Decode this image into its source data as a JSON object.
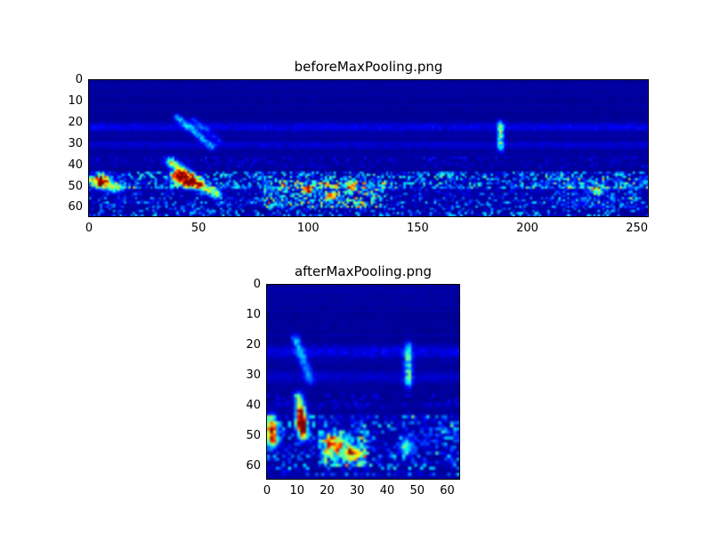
{
  "figure": {
    "background": "#ffffff",
    "colormap": "jet",
    "colormap_low_color": "#000080",
    "colormap_high_color": "#800000"
  },
  "chart_data": [
    {
      "type": "heatmap",
      "title": "beforeMaxPooling.png",
      "xlabel": "",
      "ylabel": "",
      "x_range": [
        0,
        255
      ],
      "y_range": [
        0,
        64
      ],
      "x_ticks": [
        0,
        50,
        100,
        150,
        200,
        250
      ],
      "y_ticks": [
        0,
        10,
        20,
        30,
        40,
        50,
        60
      ],
      "grid": [
        256,
        64
      ],
      "seed": 7,
      "base_value": 0.02,
      "features": [
        {
          "kind": "hline",
          "y": 21.5,
          "amp": 0.09,
          "spread": 1.3
        },
        {
          "kind": "hline",
          "y": 30,
          "amp": 0.06,
          "spread": 1.2
        },
        {
          "kind": "band",
          "y1": 36,
          "y2": 43,
          "amp": 0.1,
          "density": 0.3
        },
        {
          "kind": "line",
          "x1": 40,
          "y1": 17,
          "x2": 56,
          "y2": 31,
          "amp": 0.26,
          "w": 1.1
        },
        {
          "kind": "line",
          "x1": 47,
          "y1": 18,
          "x2": 59,
          "y2": 28,
          "amp": 0.12,
          "w": 1.0
        },
        {
          "kind": "line",
          "x1": 37,
          "y1": 38,
          "x2": 50,
          "y2": 48,
          "amp": 0.5,
          "w": 1.5
        },
        {
          "kind": "line",
          "x1": 48,
          "y1": 48,
          "x2": 58,
          "y2": 53,
          "amp": 0.45,
          "w": 1.5
        },
        {
          "kind": "blob",
          "x": 41,
          "y": 45,
          "rx": 2.5,
          "ry": 2.0,
          "amp": 0.95
        },
        {
          "kind": "blob",
          "x": 45,
          "y": 48,
          "rx": 2.0,
          "ry": 1.5,
          "amp": 0.8
        },
        {
          "kind": "blob",
          "x": 5,
          "y": 47,
          "rx": 3.0,
          "ry": 1.8,
          "amp": 0.95
        },
        {
          "kind": "blob",
          "x": 11,
          "y": 50,
          "rx": 3.0,
          "ry": 1.5,
          "amp": 0.45
        },
        {
          "kind": "band",
          "y1": 43,
          "y2": 50,
          "amp": 0.33,
          "density": 0.65
        },
        {
          "kind": "band",
          "y1": 50,
          "y2": 63,
          "amp": 0.25,
          "density": 0.45
        },
        {
          "kind": "cluster",
          "x1": 80,
          "x2": 135,
          "y1": 47,
          "y2": 59,
          "amp": 0.7,
          "density": 0.5
        },
        {
          "kind": "blob",
          "x": 100,
          "y": 51,
          "rx": 1.6,
          "ry": 1.3,
          "amp": 0.75
        },
        {
          "kind": "blob",
          "x": 110,
          "y": 54,
          "rx": 1.6,
          "ry": 1.3,
          "amp": 0.7
        },
        {
          "kind": "blob",
          "x": 120,
          "y": 50,
          "rx": 1.4,
          "ry": 1.2,
          "amp": 0.65
        },
        {
          "kind": "vline",
          "x": 188,
          "y1": 18,
          "y2": 34,
          "amp": 0.45,
          "w": 1.0
        },
        {
          "kind": "cluster",
          "x1": 212,
          "x2": 252,
          "y1": 46,
          "y2": 59,
          "amp": 0.35,
          "density": 0.4
        },
        {
          "kind": "blob",
          "x": 232,
          "y": 51,
          "rx": 2.0,
          "ry": 1.5,
          "amp": 0.45
        }
      ]
    },
    {
      "type": "heatmap",
      "title": "afterMaxPooling.png",
      "xlabel": "",
      "ylabel": "",
      "x_range": [
        0,
        64
      ],
      "y_range": [
        0,
        64
      ],
      "x_ticks": [
        0,
        10,
        20,
        30,
        40,
        50,
        60
      ],
      "y_ticks": [
        0,
        10,
        20,
        30,
        40,
        50,
        60
      ],
      "grid": [
        64,
        64
      ],
      "seed": 13,
      "base_value": 0.02,
      "features": [
        {
          "kind": "hline",
          "y": 21.5,
          "amp": 0.09,
          "spread": 1.2
        },
        {
          "kind": "hline",
          "y": 30,
          "amp": 0.05,
          "spread": 1.1
        },
        {
          "kind": "band",
          "y1": 36,
          "y2": 43,
          "amp": 0.1,
          "density": 0.3
        },
        {
          "kind": "line",
          "x1": 9,
          "y1": 17,
          "x2": 14,
          "y2": 31,
          "amp": 0.26,
          "w": 0.9
        },
        {
          "kind": "line",
          "x1": 10,
          "y1": 36,
          "x2": 11.5,
          "y2": 46,
          "amp": 0.45,
          "w": 1.0
        },
        {
          "kind": "blob",
          "x": 10.8,
          "y": 44,
          "rx": 1.1,
          "ry": 2.5,
          "amp": 0.95
        },
        {
          "kind": "blob",
          "x": 11.5,
          "y": 48.5,
          "rx": 1.0,
          "ry": 1.5,
          "amp": 0.8
        },
        {
          "kind": "blob",
          "x": 1,
          "y": 47,
          "rx": 1.2,
          "ry": 2.5,
          "amp": 0.9
        },
        {
          "kind": "blob",
          "x": 1.5,
          "y": 51,
          "rx": 1.2,
          "ry": 1.5,
          "amp": 0.6
        },
        {
          "kind": "band",
          "y1": 43,
          "y2": 62,
          "amp": 0.28,
          "density": 0.5
        },
        {
          "kind": "cluster",
          "x1": 17,
          "x2": 33,
          "y1": 48,
          "y2": 59,
          "amp": 0.6,
          "density": 0.6
        },
        {
          "kind": "blob",
          "x": 21,
          "y": 52,
          "rx": 2.0,
          "ry": 2.0,
          "amp": 0.6
        },
        {
          "kind": "blob",
          "x": 27,
          "y": 55,
          "rx": 2.5,
          "ry": 2.0,
          "amp": 0.55
        },
        {
          "kind": "vline",
          "x": 46.5,
          "y1": 18,
          "y2": 34,
          "amp": 0.4,
          "w": 0.9
        },
        {
          "kind": "blob",
          "x": 46,
          "y": 53,
          "rx": 1.5,
          "ry": 2.0,
          "amp": 0.42
        },
        {
          "kind": "cluster",
          "x1": 52,
          "x2": 63,
          "y1": 46,
          "y2": 58,
          "amp": 0.3,
          "density": 0.35
        }
      ]
    }
  ]
}
